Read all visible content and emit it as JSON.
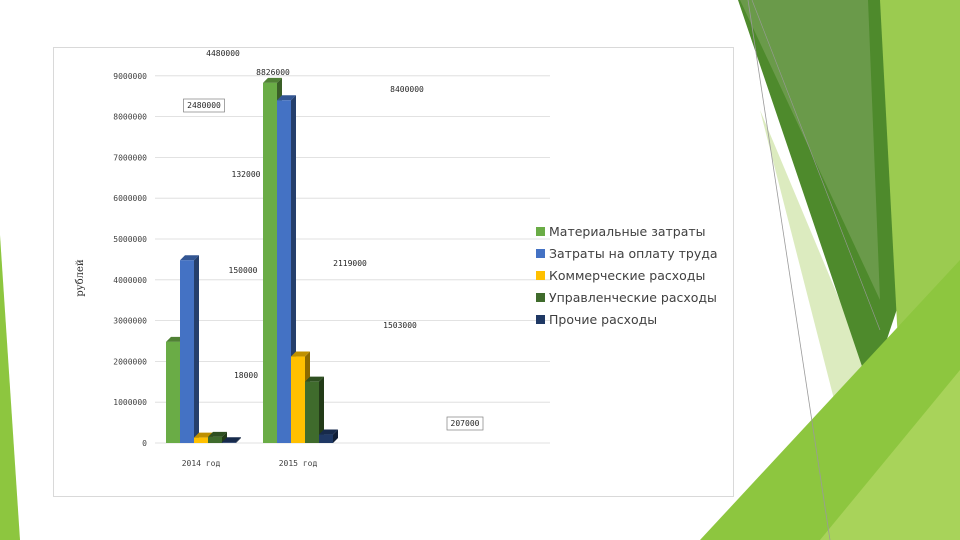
{
  "colors": {
    "accent_green": "#8dc63f",
    "accent_dark": "#4e8a2c"
  },
  "chart_data": {
    "type": "bar",
    "title": "",
    "xlabel": "",
    "ylabel": "рублей",
    "ylim": [
      0,
      10000000
    ],
    "y_ticks": [
      "0",
      "1000000",
      "2000000",
      "3000000",
      "4000000",
      "5000000",
      "6000000",
      "7000000",
      "8000000",
      "9000000"
    ],
    "categories": [
      "2014 год",
      "2015 год"
    ],
    "series": [
      {
        "name": "Материальные затраты",
        "color": "#6aac46",
        "values": [
          2480000,
          8826000
        ]
      },
      {
        "name": "Затраты на оплату труда",
        "color": "#4472c4",
        "values": [
          4480000,
          8400000
        ]
      },
      {
        "name": "Коммерческие расходы",
        "color": "#ffc000",
        "values": [
          132000,
          2119000
        ]
      },
      {
        "name": "Управленческие расходы",
        "color": "#3f6b2c",
        "values": [
          150000,
          1503000
        ]
      },
      {
        "name": "Прочие расходы",
        "color": "#1f3864",
        "values": [
          18000,
          207000
        ]
      }
    ],
    "data_labels": [
      "4480000",
      "8826000",
      "8400000",
      "2480000",
      "132000",
      "2119000",
      "150000",
      "1503000",
      "18000",
      "207000"
    ],
    "grid": true,
    "legend_position": "right"
  }
}
